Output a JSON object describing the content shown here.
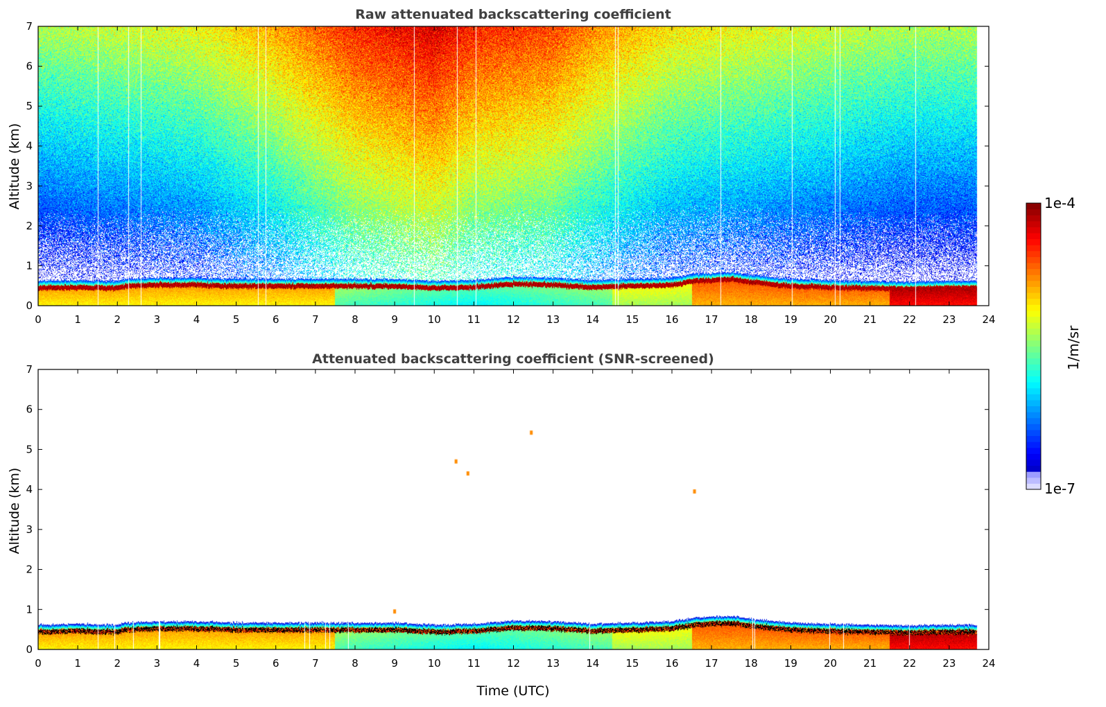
{
  "chart_data": [
    {
      "type": "heatmap",
      "title": "Raw attenuated backscattering coefficient",
      "xlabel": "",
      "ylabel": "Altitude (km)",
      "xlim": [
        0,
        24
      ],
      "ylim": [
        0,
        7
      ],
      "xticks": [
        "0",
        "1",
        "2",
        "3",
        "4",
        "5",
        "6",
        "7",
        "8",
        "9",
        "10",
        "11",
        "12",
        "13",
        "14",
        "15",
        "16",
        "17",
        "18",
        "19",
        "20",
        "21",
        "22",
        "23",
        "24"
      ],
      "yticks": [
        "0",
        "1",
        "2",
        "3",
        "4",
        "5",
        "6",
        "7"
      ],
      "data_end_time": 23.7,
      "grid": false,
      "noise_screened": false,
      "features": {
        "boundary_layer_top_km": [
          [
            0,
            0.5
          ],
          [
            1,
            0.52
          ],
          [
            2,
            0.5
          ],
          [
            2.2,
            0.55
          ],
          [
            3,
            0.58
          ],
          [
            4,
            0.58
          ],
          [
            5,
            0.55
          ],
          [
            6,
            0.55
          ],
          [
            7,
            0.55
          ],
          [
            8,
            0.55
          ],
          [
            9,
            0.55
          ],
          [
            10,
            0.5
          ],
          [
            11,
            0.52
          ],
          [
            12,
            0.6
          ],
          [
            13,
            0.58
          ],
          [
            14,
            0.52
          ],
          [
            15,
            0.55
          ],
          [
            16,
            0.58
          ],
          [
            16.6,
            0.68
          ],
          [
            17.5,
            0.72
          ],
          [
            18,
            0.65
          ],
          [
            19,
            0.55
          ],
          [
            20,
            0.52
          ],
          [
            21,
            0.5
          ],
          [
            22,
            0.48
          ],
          [
            23,
            0.5
          ],
          [
            23.7,
            0.5
          ]
        ],
        "noise_level_profile_log10": [
          [
            0,
            -6.2
          ],
          [
            2,
            -6.1
          ],
          [
            4,
            -6.0
          ],
          [
            6,
            -5.7
          ],
          [
            8,
            -5.3
          ],
          [
            10,
            -5.1
          ],
          [
            11,
            -5.3
          ],
          [
            13,
            -5.4
          ],
          [
            14,
            -5.6
          ],
          [
            16,
            -5.9
          ],
          [
            18,
            -6.0
          ],
          [
            20,
            -6.1
          ],
          [
            22,
            -6.2
          ],
          [
            23.7,
            -6.2
          ]
        ]
      }
    },
    {
      "type": "heatmap",
      "title": "Attenuated backscattering coefficient (SNR-screened)",
      "xlabel": "Time (UTC)",
      "ylabel": "Altitude (km)",
      "xlim": [
        0,
        24
      ],
      "ylim": [
        0,
        7
      ],
      "xticks": [
        "0",
        "1",
        "2",
        "3",
        "4",
        "5",
        "6",
        "7",
        "8",
        "9",
        "10",
        "11",
        "12",
        "13",
        "14",
        "15",
        "16",
        "17",
        "18",
        "19",
        "20",
        "21",
        "22",
        "23",
        "24"
      ],
      "yticks": [
        "0",
        "1",
        "2",
        "3",
        "4",
        "5",
        "6",
        "7"
      ],
      "data_end_time": 23.7,
      "grid": false,
      "noise_screened": true,
      "isolated_features": [
        {
          "time": 10.55,
          "altitude_km": 4.7
        },
        {
          "time": 10.85,
          "altitude_km": 4.4
        },
        {
          "time": 12.45,
          "altitude_km": 5.42
        },
        {
          "time": 16.57,
          "altitude_km": 3.95
        },
        {
          "time": 9.0,
          "altitude_km": 0.95
        }
      ]
    }
  ],
  "colorbar": {
    "label": "1/m/sr",
    "max_label": "1e-4",
    "min_label": "1e-7",
    "vmin": 1e-07,
    "vmax": 0.0001,
    "scale": "log",
    "colormap": "jet"
  },
  "colors": {
    "axis": "#000000",
    "title": "#404040",
    "background": "#ffffff"
  }
}
